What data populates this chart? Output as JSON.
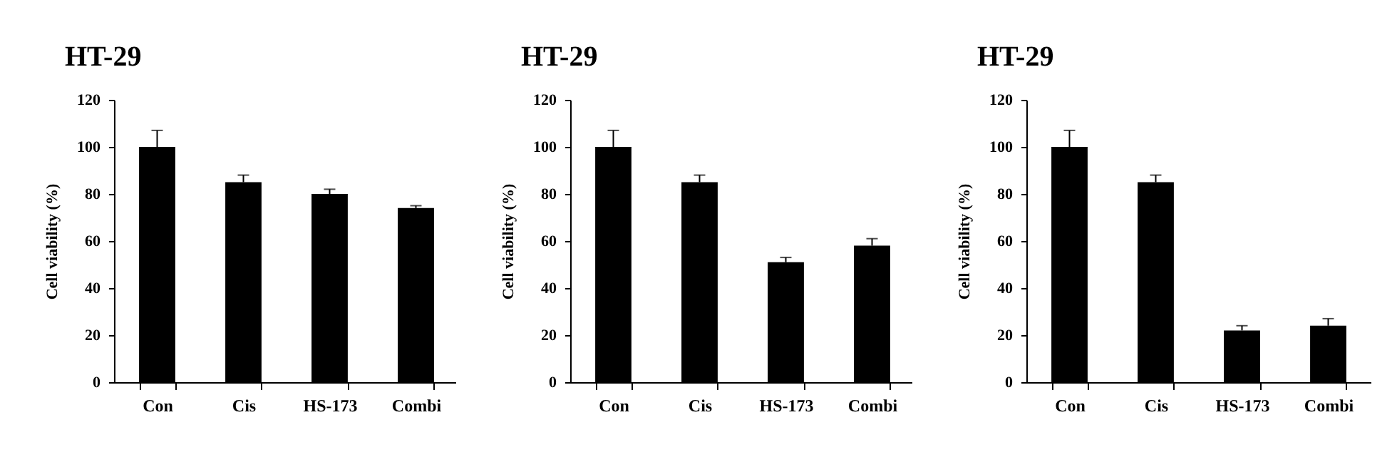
{
  "chart_data": [
    {
      "type": "bar",
      "title": "HT-29",
      "ylabel": "Cell viability (%)",
      "categories": [
        "Con",
        "Cis",
        "HS-173",
        "Combi"
      ],
      "values": [
        100,
        85,
        80,
        74
      ],
      "color": "#000000",
      "errors": [
        [
          100,
          107
        ],
        [
          85,
          88
        ],
        [
          80,
          82
        ],
        [
          74,
          75
        ]
      ],
      "ylim": [
        0,
        120
      ],
      "yticks": [
        0,
        20,
        40,
        60,
        80,
        100,
        120
      ]
    },
    {
      "type": "bar",
      "title": "HT-29",
      "ylabel": "Cell viability (%)",
      "categories": [
        "Con",
        "Cis",
        "HS-173",
        "Combi"
      ],
      "values": [
        100,
        85,
        51,
        58
      ],
      "color": "#000000",
      "errors": [
        [
          100,
          107
        ],
        [
          85,
          88
        ],
        [
          51,
          53
        ],
        [
          58,
          61
        ]
      ],
      "ylim": [
        0,
        120
      ],
      "yticks": [
        0,
        20,
        40,
        60,
        80,
        100,
        120
      ]
    },
    {
      "type": "bar",
      "title": "HT-29",
      "ylabel": "Cell viability (%)",
      "categories": [
        "Con",
        "Cis",
        "HS-173",
        "Combi"
      ],
      "values": [
        100,
        85,
        22,
        24
      ],
      "color": "#000000",
      "errors": [
        [
          100,
          107
        ],
        [
          85,
          88
        ],
        [
          22,
          24
        ],
        [
          24,
          27
        ]
      ],
      "ylim": [
        0,
        120
      ],
      "yticks": [
        0,
        20,
        40,
        60,
        80,
        100,
        120
      ]
    }
  ]
}
